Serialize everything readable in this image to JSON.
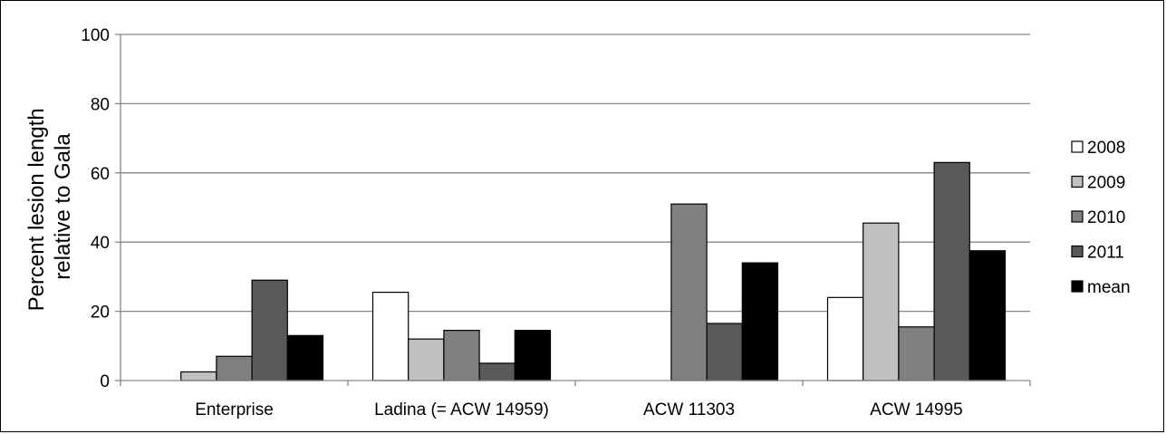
{
  "chart_data": {
    "type": "bar",
    "title": "",
    "xlabel": "",
    "ylabel_lines": [
      "Percent lesion length",
      "relative to Gala"
    ],
    "ylim": [
      0,
      100
    ],
    "yticks": [
      0,
      20,
      40,
      60,
      80,
      100
    ],
    "grid": true,
    "legend_position": "right",
    "categories": [
      "Enterprise",
      "Ladina (= ACW 14959)",
      "ACW 11303",
      "ACW 14995"
    ],
    "series": [
      {
        "name": "2008",
        "color": "#ffffff",
        "values": [
          null,
          25.5,
          null,
          24
        ]
      },
      {
        "name": "2009",
        "color": "#c0c0c0",
        "values": [
          2.5,
          12,
          null,
          45.5
        ]
      },
      {
        "name": "2010",
        "color": "#808080",
        "values": [
          7,
          14.5,
          51,
          15.5
        ]
      },
      {
        "name": "2011",
        "color": "#595959",
        "values": [
          29,
          5,
          16.5,
          63
        ]
      },
      {
        "name": "mean",
        "color": "#000000",
        "values": [
          13,
          14.5,
          34,
          37.5
        ]
      }
    ]
  }
}
